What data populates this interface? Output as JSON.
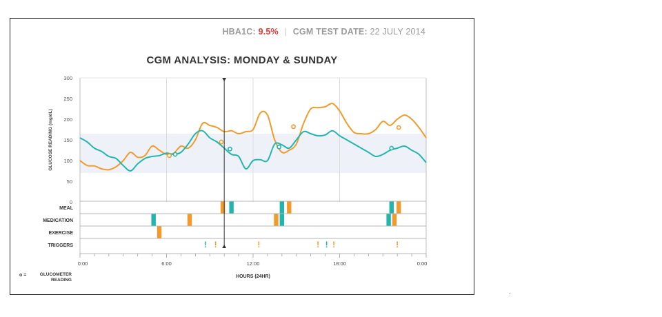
{
  "header": {
    "hba1c_label": "HBA1C:",
    "hba1c_value": "9.5%",
    "separator": "|",
    "test_date_label": "CGM TEST DATE:",
    "test_date_value": "22 JULY 2014"
  },
  "footer_mark": ".",
  "colors": {
    "monday": "#f29b2d",
    "sunday": "#21b5ad",
    "target_band": "#eef2f8",
    "hba1c_value": "#e53935",
    "now_line": "#333333"
  },
  "legend": {
    "glucometer_symbol": "o =",
    "glucometer_label_1": "GLUCOMETER",
    "glucometer_label_2": "READING"
  },
  "chart_data": {
    "type": "line",
    "title": "CGM ANALYSIS:  MONDAY & SUNDAY",
    "xlabel": "HOURS (24HR)",
    "ylabel": "GLUCOSE READING (mg/dL)",
    "xlim": [
      0,
      24
    ],
    "ylim": [
      0,
      300
    ],
    "yticks": [
      0,
      50,
      100,
      150,
      200,
      250,
      300
    ],
    "xticks": [
      {
        "hour": 0,
        "label": "0:00"
      },
      {
        "hour": 6,
        "label": "6:00"
      },
      {
        "hour": 12,
        "label": "12:00"
      },
      {
        "hour": 18,
        "label": "18:00"
      },
      {
        "hour": 24,
        "label": "0:00"
      }
    ],
    "target_range": [
      70,
      165
    ],
    "current_time_hour": 10,
    "series": [
      {
        "color": "#f29b2d",
        "x": [
          0,
          0.5,
          1,
          1.5,
          2,
          2.5,
          3,
          3.5,
          4,
          4.5,
          5,
          5.5,
          6,
          6.5,
          7,
          7.5,
          8,
          8.5,
          9,
          9.5,
          10,
          10.5,
          11,
          11.5,
          12,
          12.5,
          13,
          13.5,
          14,
          14.5,
          15,
          15.5,
          16,
          16.5,
          17,
          17.5,
          18,
          18.5,
          19,
          19.5,
          20,
          20.5,
          21,
          21.5,
          22,
          22.5,
          23,
          23.5,
          24
        ],
        "y": [
          100,
          88,
          87,
          80,
          78,
          85,
          100,
          120,
          108,
          112,
          135,
          125,
          115,
          118,
          135,
          130,
          150,
          190,
          185,
          180,
          170,
          172,
          165,
          170,
          175,
          215,
          210,
          150,
          120,
          125,
          140,
          190,
          225,
          228,
          230,
          238,
          220,
          190,
          168,
          165,
          165,
          175,
          195,
          185,
          200,
          210,
          200,
          180,
          155
        ]
      },
      {
        "color": "#21b5ad",
        "x": [
          0,
          0.5,
          1,
          1.5,
          2,
          2.5,
          3,
          3.5,
          4,
          4.5,
          5,
          5.5,
          6,
          6.5,
          7,
          7.5,
          8,
          8.5,
          9,
          9.5,
          10,
          10.5,
          11,
          11.5,
          12,
          12.5,
          13,
          13.5,
          14,
          14.5,
          15,
          15.5,
          16,
          16.5,
          17,
          17.5,
          18,
          18.5,
          19,
          19.5,
          20,
          20.5,
          21,
          21.5,
          22,
          22.5,
          23,
          23.5,
          24
        ],
        "y": [
          155,
          145,
          130,
          122,
          110,
          105,
          88,
          75,
          92,
          105,
          110,
          112,
          118,
          115,
          120,
          140,
          165,
          172,
          155,
          145,
          130,
          115,
          110,
          80,
          100,
          102,
          100,
          140,
          138,
          130,
          150,
          170,
          165,
          160,
          162,
          172,
          160,
          150,
          140,
          130,
          120,
          110,
          115,
          125,
          130,
          135,
          125,
          115,
          95
        ]
      }
    ],
    "glucometer_readings": [
      {
        "hour": 6.2,
        "value": 112,
        "color": "#f29b2d"
      },
      {
        "hour": 6.6,
        "value": 115,
        "color": "#21b5ad"
      },
      {
        "hour": 9.8,
        "value": 145,
        "color": "#f29b2d"
      },
      {
        "hour": 10.4,
        "value": 128,
        "color": "#21b5ad"
      },
      {
        "hour": 13.8,
        "value": 133,
        "color": "#21b5ad"
      },
      {
        "hour": 14.8,
        "value": 182,
        "color": "#f29b2d"
      },
      {
        "hour": 21.6,
        "value": 130,
        "color": "#21b5ad"
      },
      {
        "hour": 22.1,
        "value": 180,
        "color": "#f29b2d"
      }
    ],
    "event_rows": [
      {
        "label": "MEAL",
        "events": [
          {
            "hour": 9.9,
            "color": "#f29b2d"
          },
          {
            "hour": 10.5,
            "color": "#21b5ad"
          },
          {
            "hour": 14.0,
            "color": "#21b5ad"
          },
          {
            "hour": 14.5,
            "color": "#f29b2d"
          },
          {
            "hour": 21.6,
            "color": "#21b5ad"
          },
          {
            "hour": 22.1,
            "color": "#f29b2d"
          }
        ]
      },
      {
        "label": "MEDICATION",
        "events": [
          {
            "hour": 5.1,
            "color": "#21b5ad"
          },
          {
            "hour": 7.6,
            "color": "#f29b2d"
          },
          {
            "hour": 13.6,
            "color": "#f29b2d"
          },
          {
            "hour": 14.0,
            "color": "#21b5ad"
          },
          {
            "hour": 21.4,
            "color": "#21b5ad"
          },
          {
            "hour": 21.8,
            "color": "#f29b2d"
          }
        ]
      },
      {
        "label": "EXERCISE",
        "events": [
          {
            "hour": 5.5,
            "color": "#f29b2d"
          }
        ]
      },
      {
        "label": "TRIGGERS",
        "triggers": [
          {
            "hour": 8.7,
            "color": "#21b5ad",
            "symbol": "!"
          },
          {
            "hour": 9.4,
            "color": "#f29b2d",
            "symbol": "!"
          },
          {
            "hour": 12.4,
            "color": "#f29b2d",
            "symbol": "!"
          },
          {
            "hour": 16.5,
            "color": "#f29b2d",
            "symbol": "!"
          },
          {
            "hour": 17.1,
            "color": "#21b5ad",
            "symbol": "!"
          },
          {
            "hour": 17.6,
            "color": "#f29b2d",
            "symbol": "!"
          },
          {
            "hour": 22.0,
            "color": "#f29b2d",
            "symbol": "!"
          }
        ]
      }
    ]
  }
}
